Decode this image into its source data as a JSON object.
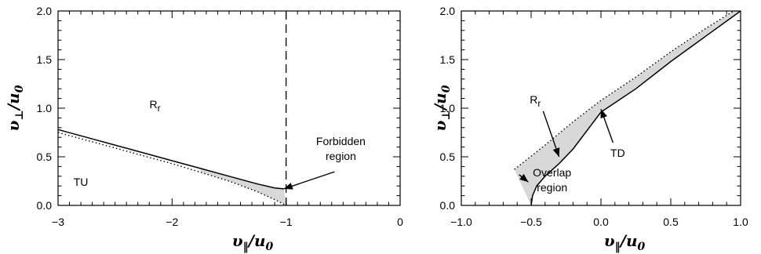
{
  "chart_data": [
    {
      "type": "line",
      "xlabel": "υ‖/u0",
      "ylabel": "υ⊥/u0",
      "xlim": [
        -3,
        0
      ],
      "ylim": [
        0,
        2
      ],
      "x_ticks": [
        "−3",
        "−2",
        "−1",
        "0"
      ],
      "y_ticks": [
        "0.0",
        "0.5",
        "1.0",
        "1.5",
        "2.0"
      ],
      "series": [
        {
          "style": "solid",
          "points": [
            [
              -3,
              0.78
            ],
            [
              -2.75,
              0.7
            ],
            [
              -2.5,
              0.62
            ],
            [
              -2.25,
              0.54
            ],
            [
              -2,
              0.46
            ],
            [
              -1.75,
              0.38
            ],
            [
              -1.5,
              0.3
            ],
            [
              -1.25,
              0.22
            ],
            [
              -1.1,
              0.18
            ],
            [
              -1.02,
              0.17
            ]
          ]
        },
        {
          "style": "dotted",
          "points": [
            [
              -3,
              0.75
            ],
            [
              -2.75,
              0.67
            ],
            [
              -2.5,
              0.59
            ],
            [
              -2.25,
              0.51
            ],
            [
              -2,
              0.43
            ],
            [
              -1.75,
              0.34
            ],
            [
              -1.5,
              0.25
            ],
            [
              -1.25,
              0.14
            ],
            [
              -1.1,
              0.06
            ],
            [
              -1.0,
              0.0
            ]
          ]
        }
      ],
      "vertical_line": {
        "x": -1,
        "style": "dashed"
      },
      "shaded_region": "between solid and dotted curves, x from -1.9 to -1",
      "annotations": [
        {
          "text": "R",
          "subscript": "r",
          "at": [
            -2.15,
            1.0
          ]
        },
        {
          "text": "TU",
          "at": [
            -2.8,
            0.2
          ]
        },
        {
          "lines": [
            "Forbidden",
            "region"
          ],
          "at": [
            -0.52,
            0.62
          ],
          "arrow_to": [
            -1.02,
            0.17
          ]
        }
      ]
    },
    {
      "type": "line",
      "xlabel": "υ‖/u0",
      "ylabel": "υ⊥/u0",
      "xlim": [
        -1,
        1
      ],
      "ylim": [
        0,
        2
      ],
      "x_ticks": [
        "−1.0",
        "−0.5",
        "0.0",
        "0.5",
        "1.0"
      ],
      "y_ticks": [
        "0.0",
        "0.5",
        "1.0",
        "1.5",
        "2.0"
      ],
      "series": [
        {
          "style": "solid",
          "points": [
            [
              -0.5,
              0.0
            ],
            [
              -0.49,
              0.1
            ],
            [
              -0.46,
              0.2
            ],
            [
              -0.4,
              0.3
            ],
            [
              -0.3,
              0.43
            ],
            [
              -0.2,
              0.58
            ],
            [
              0,
              0.96
            ],
            [
              0.25,
              1.2
            ],
            [
              0.5,
              1.48
            ],
            [
              0.75,
              1.74
            ],
            [
              1,
              2.0
            ]
          ]
        },
        {
          "style": "dotted",
          "points": [
            [
              -0.62,
              0.37
            ],
            [
              -0.4,
              0.62
            ],
            [
              -0.2,
              0.86
            ],
            [
              0,
              1.08
            ],
            [
              0.25,
              1.32
            ],
            [
              0.5,
              1.58
            ],
            [
              0.75,
              1.82
            ],
            [
              0.95,
              2.0
            ]
          ]
        }
      ],
      "shaded_region": "between solid and dotted curves",
      "annotations": [
        {
          "text": "R",
          "subscript": "r",
          "at": [
            -0.47,
            1.05
          ],
          "arrow_to": [
            -0.3,
            0.5
          ]
        },
        {
          "text": "TD",
          "at": [
            0.12,
            0.5
          ],
          "arrow_to": [
            0.0,
            0.99
          ]
        },
        {
          "lines": [
            "Overlap",
            "region"
          ],
          "at": [
            -0.35,
            0.3
          ],
          "arrow_to": [
            -0.52,
            0.24
          ]
        }
      ]
    }
  ]
}
